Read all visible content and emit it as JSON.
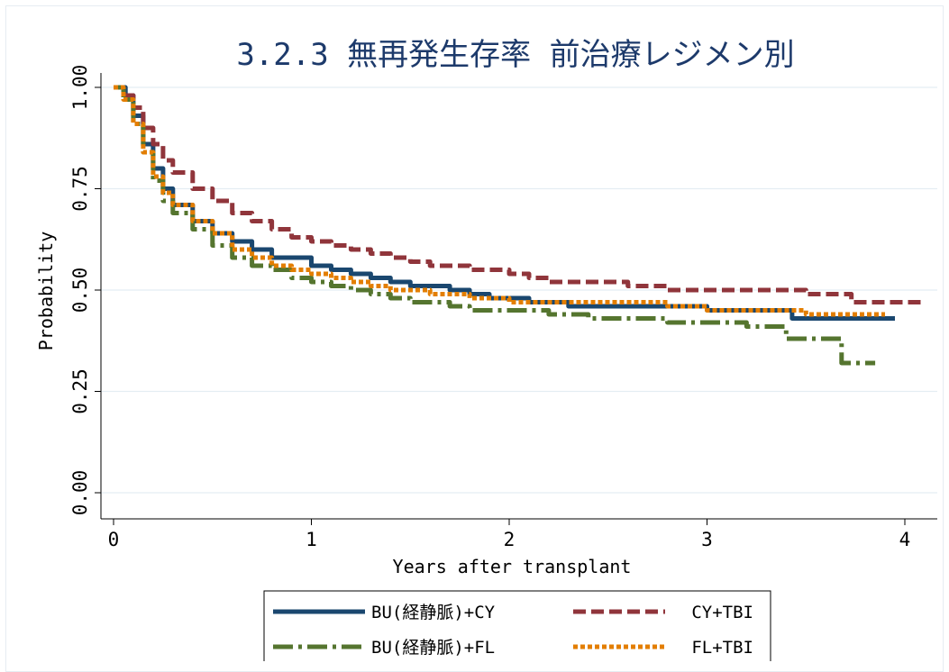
{
  "chart_data": {
    "type": "line",
    "title": "3.2.3 無再発生存率 前治療レジメン別",
    "xlabel": "Years after transplant",
    "ylabel": "Probability",
    "xlim": [
      0,
      4.15
    ],
    "ylim": [
      0,
      1
    ],
    "x_ticks": [
      "0",
      "1",
      "2",
      "3",
      "4"
    ],
    "y_ticks": [
      "0.00",
      "0.25",
      "0.50",
      "0.75",
      "1.00"
    ],
    "grid": "horizontal",
    "legend_position": "bottom",
    "series": [
      {
        "name": "BU(経静脈)+CY",
        "color": "#1a476f",
        "dash": "solid",
        "points": [
          [
            0,
            1
          ],
          [
            0.03,
            1
          ],
          [
            0.06,
            0.98
          ],
          [
            0.1,
            0.93
          ],
          [
            0.15,
            0.86
          ],
          [
            0.2,
            0.8
          ],
          [
            0.25,
            0.75
          ],
          [
            0.3,
            0.71
          ],
          [
            0.4,
            0.67
          ],
          [
            0.5,
            0.64
          ],
          [
            0.6,
            0.62
          ],
          [
            0.7,
            0.6
          ],
          [
            0.8,
            0.58
          ],
          [
            0.9,
            0.58
          ],
          [
            1,
            0.56
          ],
          [
            1.1,
            0.55
          ],
          [
            1.2,
            0.54
          ],
          [
            1.3,
            0.53
          ],
          [
            1.4,
            0.52
          ],
          [
            1.5,
            0.51
          ],
          [
            1.6,
            0.51
          ],
          [
            1.7,
            0.5
          ],
          [
            1.8,
            0.49
          ],
          [
            1.9,
            0.48
          ],
          [
            2,
            0.48
          ],
          [
            2.1,
            0.47
          ],
          [
            2.3,
            0.46
          ],
          [
            2.6,
            0.46
          ],
          [
            3,
            0.45
          ],
          [
            3.3,
            0.45
          ],
          [
            3.43,
            0.45
          ],
          [
            3.43,
            0.43
          ],
          [
            3.95,
            0.43
          ]
        ]
      },
      {
        "name": "CY+TBI",
        "color": "#90353b",
        "dash": "long",
        "points": [
          [
            0,
            1
          ],
          [
            0.05,
            0.98
          ],
          [
            0.1,
            0.95
          ],
          [
            0.15,
            0.9
          ],
          [
            0.2,
            0.86
          ],
          [
            0.25,
            0.82
          ],
          [
            0.3,
            0.79
          ],
          [
            0.4,
            0.75
          ],
          [
            0.5,
            0.72
          ],
          [
            0.6,
            0.69
          ],
          [
            0.7,
            0.67
          ],
          [
            0.8,
            0.65
          ],
          [
            0.9,
            0.63
          ],
          [
            1,
            0.62
          ],
          [
            1.1,
            0.61
          ],
          [
            1.2,
            0.6
          ],
          [
            1.3,
            0.59
          ],
          [
            1.4,
            0.58
          ],
          [
            1.5,
            0.57
          ],
          [
            1.6,
            0.56
          ],
          [
            1.7,
            0.56
          ],
          [
            1.8,
            0.55
          ],
          [
            1.9,
            0.55
          ],
          [
            2,
            0.54
          ],
          [
            2.1,
            0.53
          ],
          [
            2.2,
            0.52
          ],
          [
            2.4,
            0.52
          ],
          [
            2.6,
            0.51
          ],
          [
            2.8,
            0.5
          ],
          [
            3,
            0.5
          ],
          [
            3.3,
            0.5
          ],
          [
            3.5,
            0.49
          ],
          [
            3.7,
            0.49
          ],
          [
            3.73,
            0.47
          ],
          [
            4.1,
            0.47
          ]
        ]
      },
      {
        "name": "BU(経静脈)+FL",
        "color": "#55752f",
        "dash": "dashdot",
        "points": [
          [
            0,
            1
          ],
          [
            0.05,
            0.97
          ],
          [
            0.1,
            0.91
          ],
          [
            0.15,
            0.84
          ],
          [
            0.2,
            0.77
          ],
          [
            0.25,
            0.72
          ],
          [
            0.3,
            0.69
          ],
          [
            0.4,
            0.65
          ],
          [
            0.5,
            0.61
          ],
          [
            0.6,
            0.58
          ],
          [
            0.7,
            0.56
          ],
          [
            0.8,
            0.55
          ],
          [
            0.9,
            0.53
          ],
          [
            1,
            0.52
          ],
          [
            1.1,
            0.51
          ],
          [
            1.2,
            0.5
          ],
          [
            1.3,
            0.49
          ],
          [
            1.4,
            0.48
          ],
          [
            1.5,
            0.47
          ],
          [
            1.6,
            0.47
          ],
          [
            1.7,
            0.46
          ],
          [
            1.8,
            0.45
          ],
          [
            1.9,
            0.45
          ],
          [
            2,
            0.45
          ],
          [
            2.2,
            0.44
          ],
          [
            2.4,
            0.43
          ],
          [
            2.6,
            0.43
          ],
          [
            2.8,
            0.42
          ],
          [
            3,
            0.42
          ],
          [
            3.2,
            0.41
          ],
          [
            3.4,
            0.41
          ],
          [
            3.4,
            0.38
          ],
          [
            3.65,
            0.38
          ],
          [
            3.68,
            0.32
          ],
          [
            3.85,
            0.32
          ]
        ]
      },
      {
        "name": "FL+TBI",
        "color": "#e37e00",
        "dash": "short",
        "points": [
          [
            0,
            1
          ],
          [
            0.05,
            0.97
          ],
          [
            0.1,
            0.91
          ],
          [
            0.15,
            0.84
          ],
          [
            0.2,
            0.78
          ],
          [
            0.25,
            0.74
          ],
          [
            0.3,
            0.71
          ],
          [
            0.4,
            0.67
          ],
          [
            0.5,
            0.64
          ],
          [
            0.6,
            0.6
          ],
          [
            0.7,
            0.58
          ],
          [
            0.8,
            0.56
          ],
          [
            0.9,
            0.55
          ],
          [
            1,
            0.54
          ],
          [
            1.1,
            0.53
          ],
          [
            1.2,
            0.52
          ],
          [
            1.3,
            0.51
          ],
          [
            1.4,
            0.5
          ],
          [
            1.5,
            0.5
          ],
          [
            1.6,
            0.49
          ],
          [
            1.7,
            0.49
          ],
          [
            1.8,
            0.48
          ],
          [
            1.9,
            0.48
          ],
          [
            2,
            0.47
          ],
          [
            2.2,
            0.47
          ],
          [
            2.5,
            0.47
          ],
          [
            2.8,
            0.46
          ],
          [
            3,
            0.45
          ],
          [
            3.3,
            0.45
          ],
          [
            3.5,
            0.44
          ],
          [
            3.9,
            0.44
          ]
        ]
      }
    ]
  }
}
